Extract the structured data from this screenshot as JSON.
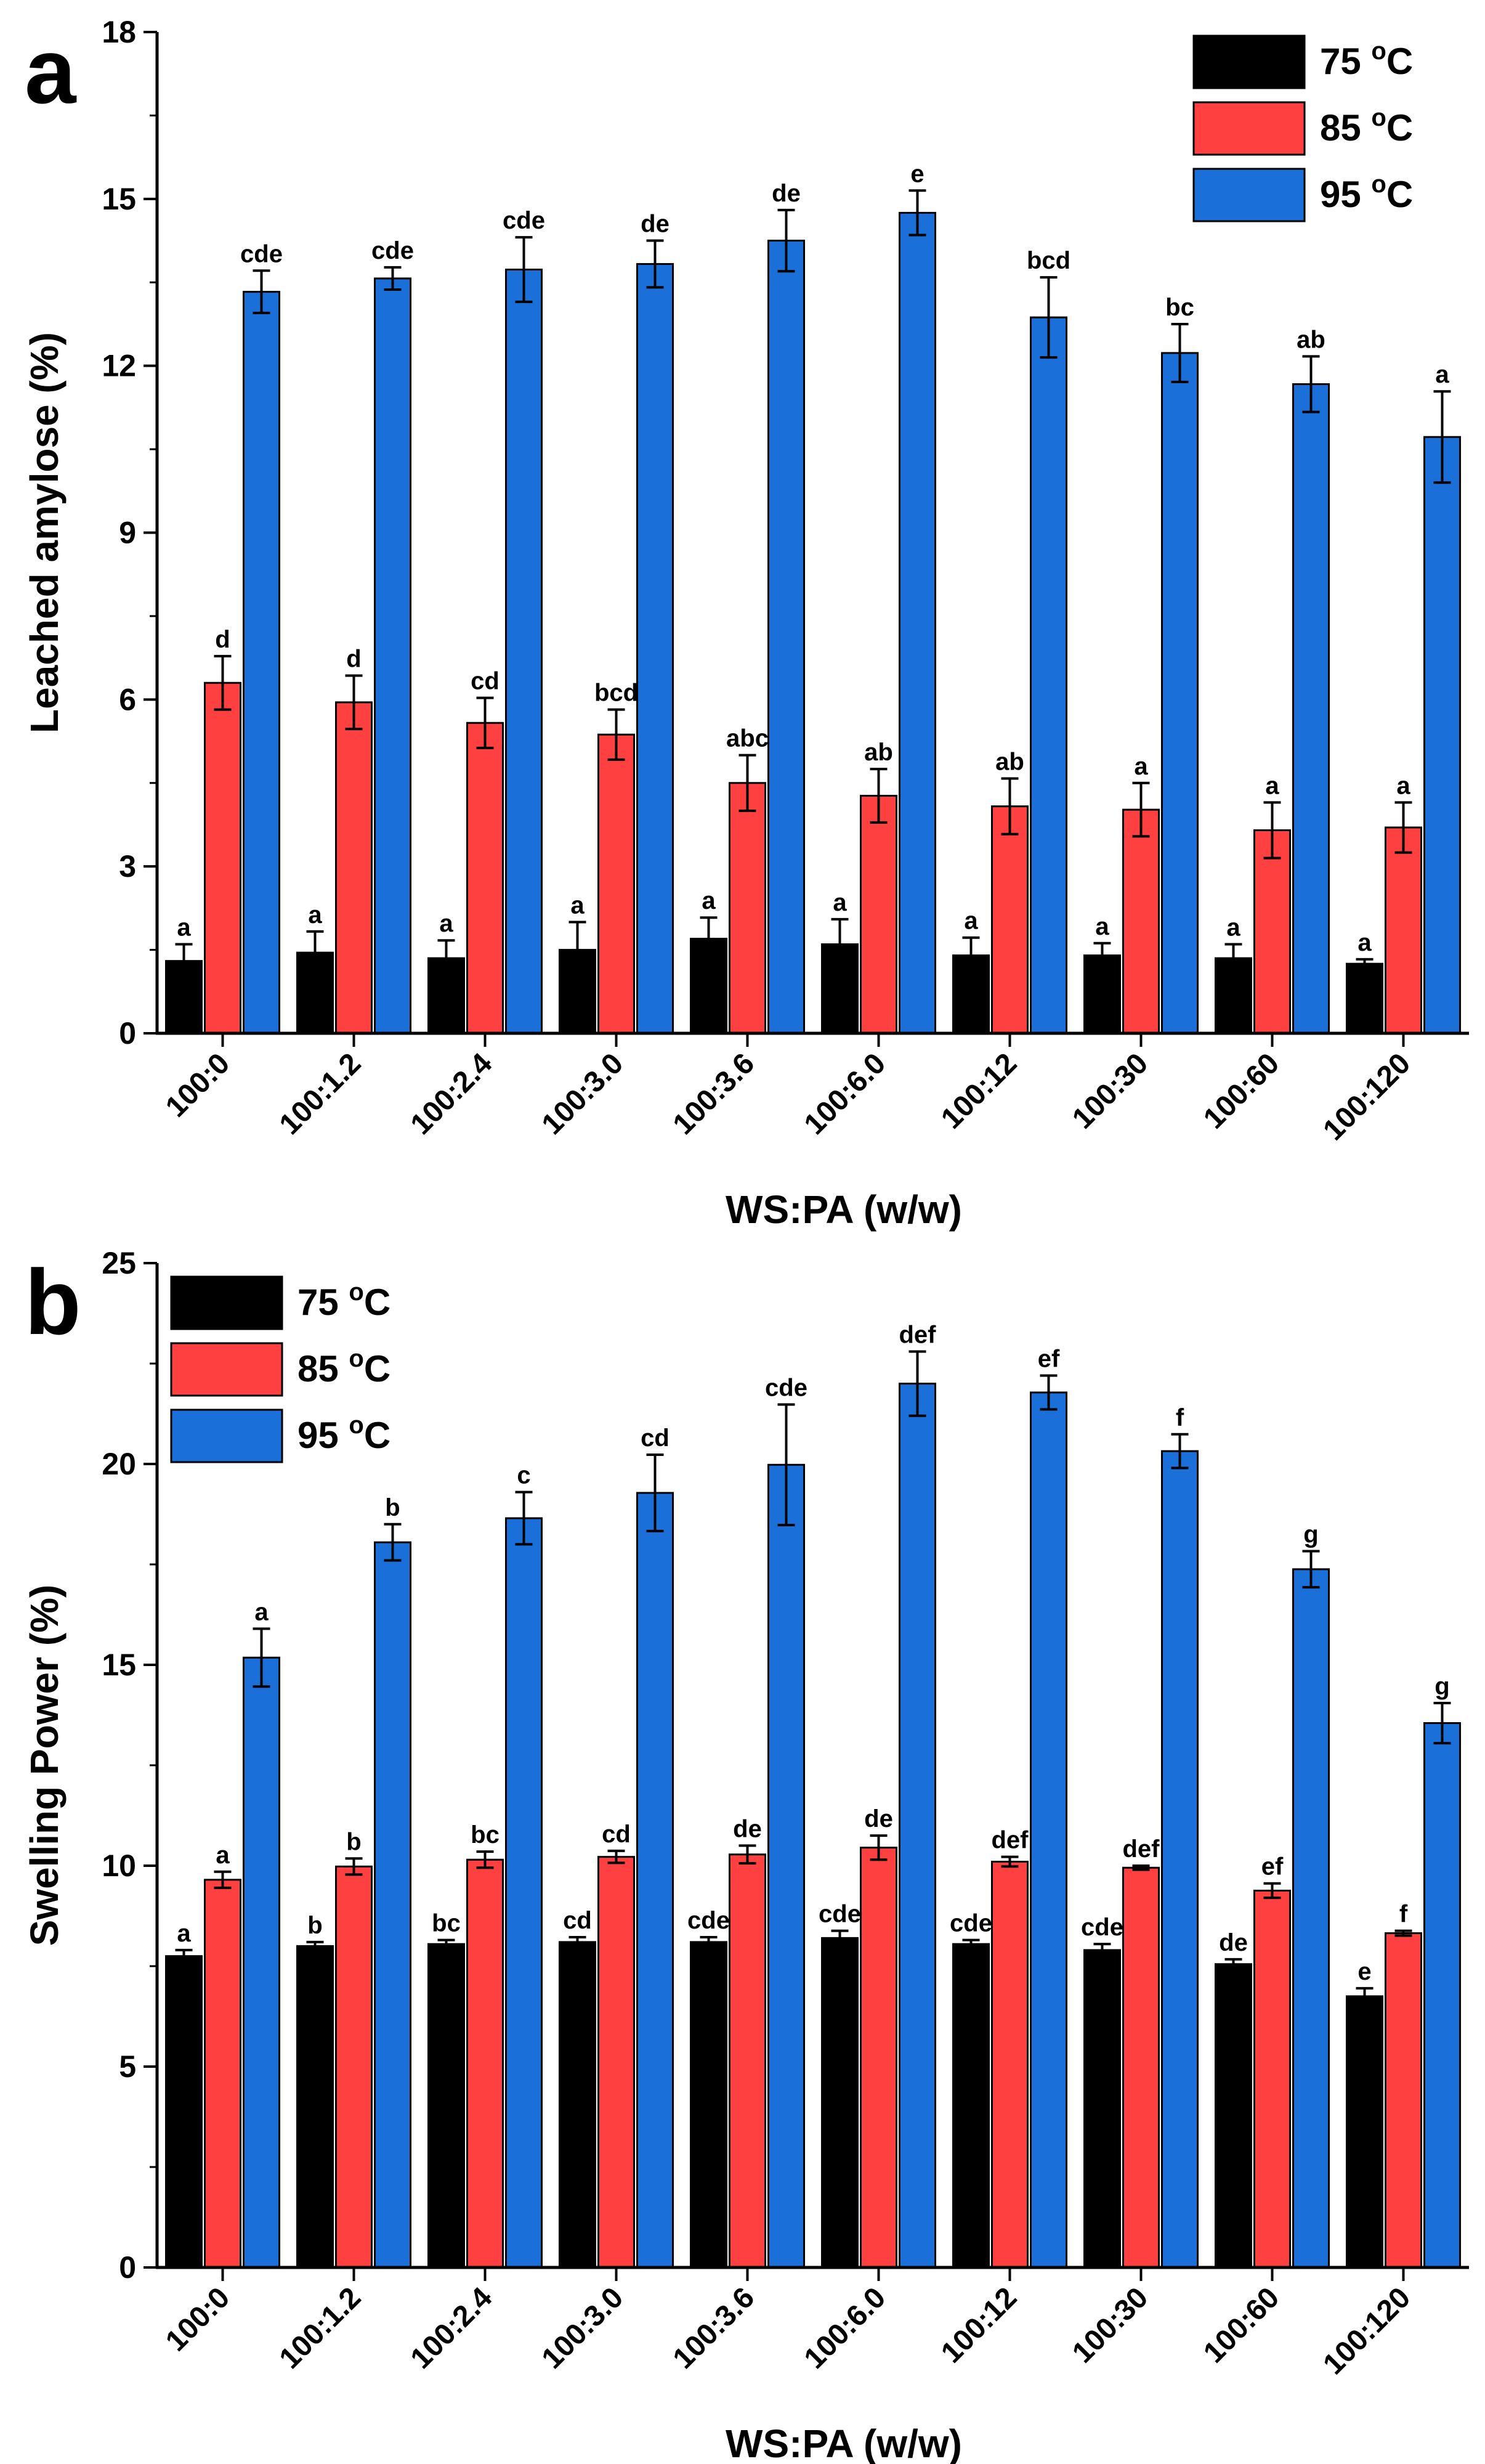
{
  "colors": {
    "t75": "#000000",
    "t85": "#ff4040",
    "t95": "#1a6fd8"
  },
  "chart_data": [
    {
      "panel_label": "a",
      "type": "bar",
      "title": "",
      "xlabel": "WS:PA (w/w)",
      "ylabel": "Leached amylose (%)",
      "ylim": [
        0,
        18
      ],
      "yticks": [
        "0",
        "3",
        "6",
        "9",
        "12",
        "15",
        "18"
      ],
      "legend_position": "top-right",
      "categories": [
        "100:0",
        "100:1.2",
        "100:2.4",
        "100:3.0",
        "100:3.6",
        "100:6.0",
        "100:12",
        "100:30",
        "100:60",
        "100:120"
      ],
      "series": [
        {
          "name": "75 °C",
          "temp": "75",
          "unit": "C",
          "values": [
            1.3,
            1.45,
            1.35,
            1.5,
            1.7,
            1.6,
            1.4,
            1.4,
            1.35,
            1.25
          ],
          "errors": [
            0.3,
            0.38,
            0.32,
            0.5,
            0.38,
            0.45,
            0.32,
            0.22,
            0.25,
            0.08
          ],
          "labels": [
            "a",
            "a",
            "a",
            "a",
            "a",
            "a",
            "a",
            "a",
            "a",
            "a"
          ]
        },
        {
          "name": "85 °C",
          "temp": "85",
          "unit": "C",
          "values": [
            6.3,
            5.95,
            5.58,
            5.37,
            4.5,
            4.27,
            4.08,
            4.02,
            3.65,
            3.7
          ],
          "errors": [
            0.48,
            0.48,
            0.45,
            0.45,
            0.5,
            0.48,
            0.5,
            0.48,
            0.5,
            0.45
          ],
          "labels": [
            "d",
            "d",
            "cd",
            "bcd",
            "abc",
            "ab",
            "ab",
            "a",
            "a",
            "a"
          ]
        },
        {
          "name": "95 °C",
          "temp": "95",
          "unit": "C",
          "values": [
            13.33,
            13.57,
            13.73,
            13.83,
            14.25,
            14.75,
            12.87,
            12.23,
            11.67,
            10.72
          ],
          "errors": [
            0.38,
            0.2,
            0.58,
            0.42,
            0.55,
            0.4,
            0.72,
            0.52,
            0.5,
            0.82
          ],
          "labels": [
            "cde",
            "cde",
            "cde",
            "de",
            "de",
            "e",
            "bcd",
            "bc",
            "ab",
            "a"
          ]
        }
      ]
    },
    {
      "panel_label": "b",
      "type": "bar",
      "title": "",
      "xlabel": "WS:PA (w/w)",
      "ylabel": "Swelling Power (%)",
      "ylim": [
        0,
        25
      ],
      "yticks": [
        "0",
        "5",
        "10",
        "15",
        "20",
        "25"
      ],
      "legend_position": "top-left",
      "categories": [
        "100:0",
        "100:1.2",
        "100:2.4",
        "100:3.0",
        "100:3.6",
        "100:6.0",
        "100:12",
        "100:30",
        "100:60",
        "100:120"
      ],
      "series": [
        {
          "name": "75 °C",
          "temp": "75",
          "unit": "C",
          "values": [
            7.75,
            8.0,
            8.05,
            8.1,
            8.1,
            8.2,
            8.05,
            7.9,
            7.55,
            6.75
          ],
          "errors": [
            0.15,
            0.1,
            0.1,
            0.12,
            0.12,
            0.18,
            0.1,
            0.15,
            0.12,
            0.2
          ],
          "labels": [
            "a",
            "b",
            "bc",
            "cd",
            "cde",
            "cde",
            "cde",
            "cde",
            "de",
            "e"
          ]
        },
        {
          "name": "85 °C",
          "temp": "85",
          "unit": "C",
          "values": [
            9.65,
            9.98,
            10.15,
            10.22,
            10.28,
            10.45,
            10.1,
            9.95,
            9.38,
            8.32
          ],
          "errors": [
            0.2,
            0.2,
            0.2,
            0.15,
            0.22,
            0.3,
            0.12,
            0.05,
            0.18,
            0.06
          ],
          "labels": [
            "a",
            "b",
            "bc",
            "cd",
            "de",
            "de",
            "def",
            "def",
            "ef",
            "f"
          ]
        },
        {
          "name": "95 °C",
          "temp": "95",
          "unit": "C",
          "values": [
            15.18,
            18.05,
            18.65,
            19.28,
            19.98,
            22.0,
            21.78,
            20.32,
            17.38,
            13.55
          ],
          "errors": [
            0.72,
            0.45,
            0.65,
            0.95,
            1.5,
            0.8,
            0.42,
            0.42,
            0.45,
            0.5
          ],
          "labels": [
            "a",
            "b",
            "c",
            "cd",
            "cde",
            "def",
            "ef",
            "f",
            "g",
            "g"
          ]
        }
      ]
    }
  ]
}
